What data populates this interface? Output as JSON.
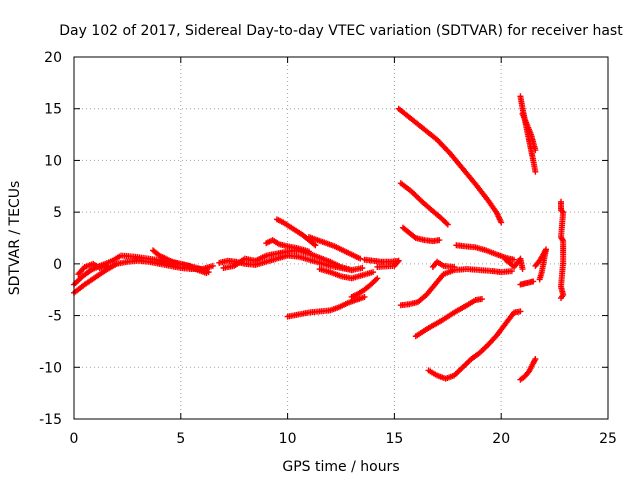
{
  "chart_data": {
    "type": "scatter",
    "title": "Day 102 of 2017, Sidereal Day-to-day VTEC variation (SDTVAR) for receiver hast",
    "xlabel": "GPS time / hours",
    "ylabel": "SDTVAR / TECUs",
    "xlim": [
      0,
      25
    ],
    "ylim": [
      -15,
      20
    ],
    "xticks": [
      0,
      5,
      10,
      15,
      20,
      25
    ],
    "yticks": [
      -15,
      -10,
      -5,
      0,
      5,
      10,
      15,
      20
    ],
    "grid": true,
    "marker": "+",
    "color": "#ff0000",
    "series": [
      {
        "points": [
          [
            0.0,
            -2.8
          ],
          [
            0.5,
            -2.0
          ],
          [
            1.0,
            -1.3
          ],
          [
            1.5,
            -0.6
          ],
          [
            2.0,
            0.0
          ],
          [
            2.5,
            0.2
          ],
          [
            3.0,
            0.3
          ],
          [
            3.5,
            0.2
          ],
          [
            4.0,
            0.0
          ],
          [
            4.5,
            -0.2
          ],
          [
            5.0,
            -0.4
          ],
          [
            5.5,
            -0.5
          ],
          [
            6.0,
            -0.5
          ],
          [
            6.5,
            -0.2
          ]
        ]
      },
      {
        "points": [
          [
            0.0,
            -2.0
          ],
          [
            0.4,
            -1.2
          ],
          [
            0.8,
            -0.6
          ],
          [
            1.2,
            -0.2
          ],
          [
            1.8,
            0.3
          ],
          [
            2.2,
            0.8
          ],
          [
            2.8,
            0.7
          ],
          [
            3.5,
            0.5
          ],
          [
            4.2,
            0.3
          ],
          [
            5.0,
            0.0
          ],
          [
            5.8,
            -0.4
          ],
          [
            6.3,
            -0.8
          ]
        ]
      },
      {
        "points": [
          [
            0.2,
            -1.0
          ],
          [
            0.5,
            -0.3
          ],
          [
            0.9,
            0.0
          ],
          [
            1.2,
            -0.4
          ],
          [
            1.6,
            -0.2
          ]
        ]
      },
      {
        "points": [
          [
            3.7,
            1.3
          ],
          [
            4.0,
            0.8
          ],
          [
            4.3,
            0.5
          ],
          [
            4.6,
            0.2
          ],
          [
            5.0,
            0.0
          ],
          [
            5.4,
            -0.2
          ],
          [
            5.8,
            -0.6
          ],
          [
            6.2,
            -0.9
          ]
        ]
      },
      {
        "points": [
          [
            6.8,
            0.1
          ],
          [
            7.2,
            0.3
          ],
          [
            7.6,
            0.2
          ],
          [
            8.0,
            0.0
          ],
          [
            8.5,
            -0.1
          ],
          [
            9.0,
            0.2
          ],
          [
            9.5,
            0.5
          ],
          [
            10.0,
            0.8
          ],
          [
            10.5,
            0.7
          ],
          [
            11.0,
            0.4
          ],
          [
            11.5,
            0.1
          ],
          [
            12.0,
            -0.2
          ],
          [
            12.5,
            -0.4
          ],
          [
            13.0,
            -0.6
          ]
        ]
      },
      {
        "points": [
          [
            7.0,
            -0.4
          ],
          [
            7.5,
            -0.2
          ],
          [
            8.0,
            0.5
          ],
          [
            8.5,
            0.3
          ],
          [
            9.0,
            0.8
          ],
          [
            9.5,
            1.0
          ],
          [
            10.0,
            1.2
          ],
          [
            10.5,
            1.3
          ],
          [
            11.0,
            1.0
          ],
          [
            11.5,
            0.6
          ],
          [
            12.0,
            0.2
          ],
          [
            12.5,
            -0.3
          ],
          [
            13.0,
            -0.6
          ],
          [
            13.5,
            -0.4
          ]
        ]
      },
      {
        "points": [
          [
            9.0,
            2.0
          ],
          [
            9.3,
            2.3
          ],
          [
            9.6,
            1.9
          ],
          [
            10.0,
            1.7
          ],
          [
            10.5,
            1.5
          ],
          [
            11.0,
            1.2
          ]
        ]
      },
      {
        "points": [
          [
            9.5,
            4.3
          ],
          [
            9.8,
            4.0
          ],
          [
            10.1,
            3.6
          ],
          [
            10.4,
            3.2
          ],
          [
            10.7,
            2.8
          ],
          [
            11.0,
            2.3
          ],
          [
            11.3,
            1.8
          ]
        ]
      },
      {
        "points": [
          [
            11.0,
            2.6
          ],
          [
            11.4,
            2.3
          ],
          [
            11.8,
            2.0
          ],
          [
            12.2,
            1.7
          ],
          [
            12.6,
            1.3
          ],
          [
            13.0,
            0.9
          ],
          [
            13.4,
            0.5
          ]
        ]
      },
      {
        "points": [
          [
            11.5,
            -0.5
          ],
          [
            12.0,
            -0.8
          ],
          [
            12.5,
            -1.2
          ],
          [
            13.0,
            -1.4
          ],
          [
            13.5,
            -1.1
          ],
          [
            14.0,
            -0.8
          ]
        ]
      },
      {
        "points": [
          [
            10.0,
            -5.1
          ],
          [
            10.5,
            -4.9
          ],
          [
            11.0,
            -4.7
          ],
          [
            11.5,
            -4.6
          ],
          [
            12.0,
            -4.5
          ],
          [
            12.4,
            -4.2
          ],
          [
            12.8,
            -3.8
          ],
          [
            13.2,
            -3.5
          ],
          [
            13.6,
            -3.2
          ]
        ]
      },
      {
        "points": [
          [
            13.0,
            -3.2
          ],
          [
            13.3,
            -2.9
          ],
          [
            13.6,
            -2.5
          ],
          [
            13.9,
            -2.0
          ],
          [
            14.2,
            -1.4
          ]
        ]
      },
      {
        "points": [
          [
            13.6,
            0.4
          ],
          [
            14.0,
            0.3
          ],
          [
            14.4,
            0.2
          ],
          [
            14.8,
            0.2
          ],
          [
            15.2,
            0.3
          ],
          [
            15.0,
            -0.2
          ],
          [
            14.2,
            -0.3
          ]
        ]
      },
      {
        "points": [
          [
            15.2,
            15.0
          ],
          [
            15.8,
            14.0
          ],
          [
            16.4,
            13.0
          ],
          [
            17.0,
            12.0
          ],
          [
            17.6,
            10.7
          ],
          [
            18.2,
            9.2
          ],
          [
            18.8,
            7.7
          ],
          [
            19.4,
            6.1
          ],
          [
            19.8,
            4.9
          ],
          [
            20.0,
            4.0
          ]
        ]
      },
      {
        "points": [
          [
            15.3,
            7.8
          ],
          [
            15.8,
            7.0
          ],
          [
            16.3,
            6.0
          ],
          [
            16.8,
            5.1
          ],
          [
            17.2,
            4.4
          ],
          [
            17.5,
            3.8
          ]
        ]
      },
      {
        "points": [
          [
            15.4,
            3.5
          ],
          [
            15.7,
            3.0
          ],
          [
            16.0,
            2.5
          ],
          [
            16.4,
            2.3
          ],
          [
            16.8,
            2.2
          ],
          [
            17.1,
            2.3
          ]
        ]
      },
      {
        "points": [
          [
            15.3,
            -4.0
          ],
          [
            15.7,
            -3.9
          ],
          [
            16.1,
            -3.7
          ],
          [
            16.5,
            -3.0
          ],
          [
            16.9,
            -2.0
          ],
          [
            17.3,
            -1.0
          ],
          [
            17.8,
            -0.6
          ],
          [
            18.4,
            -0.5
          ],
          [
            19.0,
            -0.6
          ],
          [
            19.6,
            -0.7
          ],
          [
            20.0,
            -0.8
          ],
          [
            20.5,
            -0.7
          ]
        ]
      },
      {
        "points": [
          [
            16.0,
            -7.0
          ],
          [
            16.6,
            -6.2
          ],
          [
            17.2,
            -5.5
          ],
          [
            17.8,
            -4.7
          ],
          [
            18.4,
            -4.0
          ],
          [
            18.8,
            -3.5
          ],
          [
            19.1,
            -3.4
          ]
        ]
      },
      {
        "points": [
          [
            16.8,
            -0.3
          ],
          [
            17.0,
            0.2
          ],
          [
            17.3,
            -0.2
          ],
          [
            17.8,
            -0.3
          ]
        ]
      },
      {
        "points": [
          [
            17.9,
            1.8
          ],
          [
            18.3,
            1.7
          ],
          [
            18.8,
            1.6
          ],
          [
            19.3,
            1.3
          ],
          [
            19.8,
            0.9
          ],
          [
            20.2,
            0.6
          ],
          [
            20.6,
            0.4
          ]
        ]
      },
      {
        "points": [
          [
            16.6,
            -10.3
          ],
          [
            17.0,
            -10.8
          ],
          [
            17.4,
            -11.1
          ],
          [
            17.8,
            -10.8
          ],
          [
            18.2,
            -10.0
          ],
          [
            18.6,
            -9.2
          ],
          [
            19.0,
            -8.6
          ],
          [
            19.4,
            -7.8
          ],
          [
            19.8,
            -6.9
          ],
          [
            20.2,
            -5.8
          ],
          [
            20.6,
            -4.7
          ],
          [
            20.9,
            -4.6
          ]
        ]
      },
      {
        "points": [
          [
            20.2,
            0.4
          ],
          [
            20.4,
            0.1
          ],
          [
            20.6,
            -0.3
          ],
          [
            20.8,
            0.2
          ],
          [
            20.9,
            0.5
          ],
          [
            21.0,
            -0.5
          ]
        ]
      },
      {
        "points": [
          [
            20.9,
            16.2
          ],
          [
            21.0,
            15.0
          ],
          [
            21.1,
            14.0
          ],
          [
            21.2,
            13.0
          ],
          [
            21.3,
            12.0
          ],
          [
            21.4,
            11.0
          ],
          [
            21.5,
            10.0
          ],
          [
            21.6,
            8.9
          ]
        ]
      },
      {
        "points": [
          [
            21.0,
            14.5
          ],
          [
            21.2,
            13.5
          ],
          [
            21.4,
            12.5
          ],
          [
            21.6,
            11.0
          ]
        ]
      },
      {
        "points": [
          [
            20.9,
            -11.2
          ],
          [
            21.1,
            -10.9
          ],
          [
            21.3,
            -10.4
          ],
          [
            21.5,
            -9.6
          ],
          [
            21.6,
            -9.2
          ]
        ]
      },
      {
        "points": [
          [
            20.9,
            -2.0
          ],
          [
            21.1,
            -1.9
          ],
          [
            21.3,
            -1.8
          ],
          [
            21.5,
            -1.7
          ]
        ]
      },
      {
        "points": [
          [
            21.6,
            -0.2
          ],
          [
            21.8,
            0.3
          ],
          [
            22.0,
            1.0
          ],
          [
            22.1,
            1.4
          ],
          [
            21.9,
            -0.8
          ],
          [
            21.8,
            -1.5
          ]
        ]
      },
      {
        "points": [
          [
            22.8,
            6.0
          ],
          [
            22.8,
            5.2
          ],
          [
            22.9,
            5.0
          ],
          [
            22.8,
            2.6
          ],
          [
            22.9,
            2.2
          ],
          [
            22.9,
            0.2
          ],
          [
            22.8,
            -2.2
          ],
          [
            22.9,
            -3.0
          ],
          [
            22.8,
            -3.3
          ]
        ]
      }
    ]
  }
}
